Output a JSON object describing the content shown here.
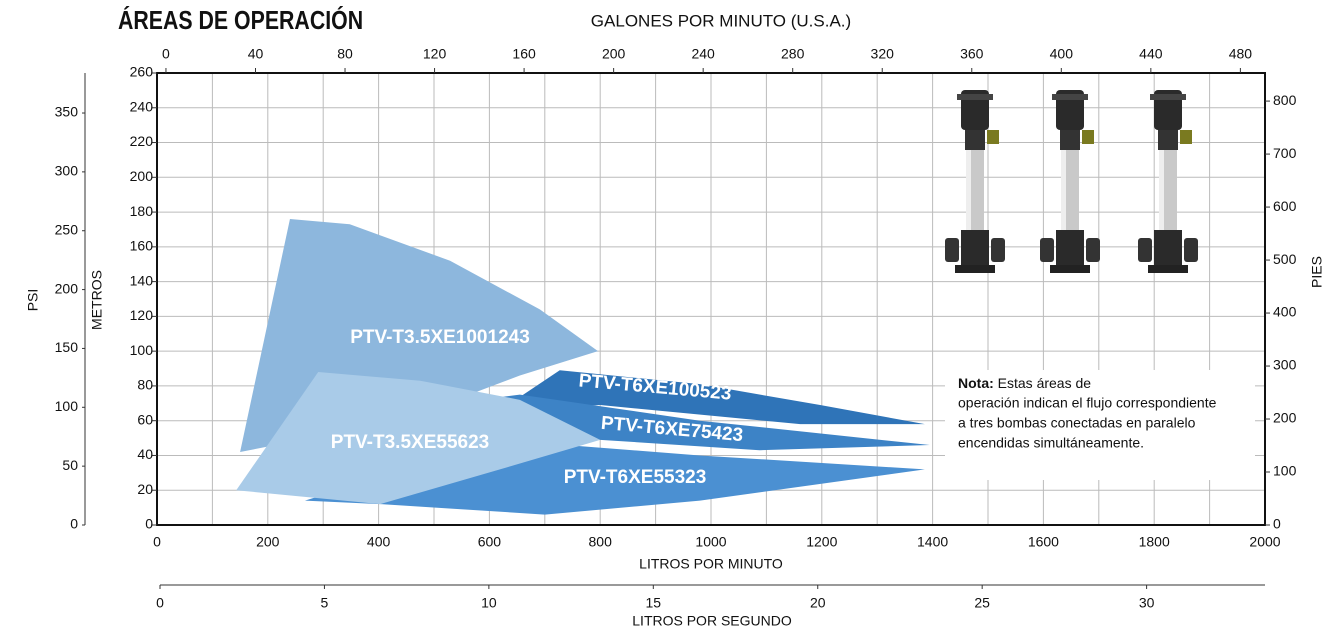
{
  "chart_data": {
    "type": "area",
    "title": "ÁREAS DE OPERACIÓN",
    "x_label": "LITROS POR MINUTO",
    "y_label": "METROS",
    "x2_label": "GALONES POR MINUTO (U.S.A.)",
    "y2_label": "PIES",
    "y3_label": "PSI",
    "x3_label": "LITROS POR SEGUNDO",
    "xlim": [
      0,
      2000
    ],
    "xticks": [
      0,
      200,
      400,
      600,
      800,
      1000,
      1200,
      1400,
      1600,
      1800,
      2000
    ],
    "x_minor_grid": [
      100,
      300,
      500,
      700,
      900,
      1100,
      1300,
      1500,
      1700,
      1900
    ],
    "ylim": [
      0,
      260
    ],
    "yticks": [
      0,
      20,
      40,
      60,
      80,
      100,
      120,
      140,
      160,
      180,
      200,
      220,
      240,
      260
    ],
    "x2lim": [
      -4,
      491
    ],
    "x2ticks": [
      0,
      40,
      80,
      120,
      160,
      200,
      240,
      280,
      320,
      360,
      400,
      440,
      480
    ],
    "y2lim": [
      0,
      853
    ],
    "y2ticks": [
      0,
      100,
      200,
      300,
      400,
      500,
      600,
      700,
      800
    ],
    "y3lim": [
      0,
      384
    ],
    "y3ticks": [
      0,
      50,
      100,
      150,
      200,
      250,
      300,
      350
    ],
    "x3lim": [
      0,
      33.6
    ],
    "x3ticks": [
      0,
      5,
      10,
      15,
      20,
      25,
      30
    ],
    "grid": true,
    "series": [
      {
        "name": "PTV-T3.5XE1001243",
        "color": "#8db7dd",
        "x": [
          150,
          240,
          348,
          529,
          691,
          796,
          655,
          439
        ],
        "values": [
          42,
          176,
          173,
          152,
          124,
          100,
          86,
          60
        ]
      },
      {
        "name": "PTV-T6XE100523",
        "color": "#2f74b8",
        "x": [
          619,
          727,
          980,
          1197,
          1386,
          1161,
          800
        ],
        "values": [
          66,
          89,
          81,
          69,
          58,
          58,
          69
        ]
      },
      {
        "name": "PTV-T6XE75423",
        "color": "#3d83c6",
        "x": [
          583,
          655,
          980,
          1395,
          1088,
          800,
          619
        ],
        "values": [
          72,
          75,
          60,
          46,
          43,
          49,
          55
        ]
      },
      {
        "name": "PTV-T6XE55323",
        "color": "#4b90d2",
        "x": [
          267,
          619,
          980,
          1386,
          980,
          700,
          403
        ],
        "values": [
          14,
          49,
          40,
          32,
          14,
          6,
          12
        ]
      },
      {
        "name": "PTV-T3.5XE55623",
        "color": "#a9cbe8",
        "x": [
          143,
          291,
          475,
          655,
          800,
          619,
          403
        ],
        "values": [
          20,
          88,
          83,
          72,
          49,
          32,
          12
        ]
      }
    ],
    "note": {
      "label": "Nota:",
      "lines": [
        "Estas áreas de",
        "operación indican el flujo correspondiente",
        "a tres bombas conectadas en paralelo",
        "encendidas simultáneamente."
      ]
    }
  }
}
